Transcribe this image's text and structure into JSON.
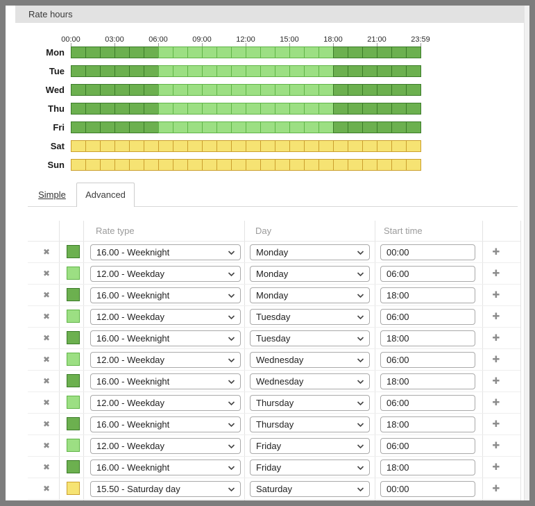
{
  "panel": {
    "title": "Rate hours"
  },
  "timeline": {
    "axis_labels": [
      "00:00",
      "03:00",
      "06:00",
      "09:00",
      "12:00",
      "15:00",
      "18:00",
      "21:00",
      "23:59"
    ],
    "days": [
      {
        "label": "Mon",
        "segments": [
          {
            "rate": "weeknight",
            "hours": 6
          },
          {
            "rate": "weekday",
            "hours": 12
          },
          {
            "rate": "weeknight",
            "hours": 6
          }
        ]
      },
      {
        "label": "Tue",
        "segments": [
          {
            "rate": "weeknight",
            "hours": 6
          },
          {
            "rate": "weekday",
            "hours": 12
          },
          {
            "rate": "weeknight",
            "hours": 6
          }
        ]
      },
      {
        "label": "Wed",
        "segments": [
          {
            "rate": "weeknight",
            "hours": 6
          },
          {
            "rate": "weekday",
            "hours": 12
          },
          {
            "rate": "weeknight",
            "hours": 6
          }
        ]
      },
      {
        "label": "Thu",
        "segments": [
          {
            "rate": "weeknight",
            "hours": 6
          },
          {
            "rate": "weekday",
            "hours": 12
          },
          {
            "rate": "weeknight",
            "hours": 6
          }
        ]
      },
      {
        "label": "Fri",
        "segments": [
          {
            "rate": "weeknight",
            "hours": 6
          },
          {
            "rate": "weekday",
            "hours": 12
          },
          {
            "rate": "weeknight",
            "hours": 6
          }
        ]
      },
      {
        "label": "Sat",
        "segments": [
          {
            "rate": "saturday_day",
            "hours": 24
          }
        ]
      },
      {
        "label": "Sun",
        "segments": [
          {
            "rate": "saturday_day",
            "hours": 24
          }
        ]
      }
    ]
  },
  "tabs": [
    {
      "label": "Simple",
      "active": false
    },
    {
      "label": "Advanced",
      "active": true
    }
  ],
  "table": {
    "headers": {
      "rate_type": "Rate type",
      "day": "Day",
      "start_time": "Start time"
    },
    "rows": [
      {
        "rate": "weeknight",
        "rate_type": "16.00 - Weeknight",
        "day": "Monday",
        "start_time": "00:00"
      },
      {
        "rate": "weekday",
        "rate_type": "12.00 - Weekday",
        "day": "Monday",
        "start_time": "06:00"
      },
      {
        "rate": "weeknight",
        "rate_type": "16.00 - Weeknight",
        "day": "Monday",
        "start_time": "18:00"
      },
      {
        "rate": "weekday",
        "rate_type": "12.00 - Weekday",
        "day": "Tuesday",
        "start_time": "06:00"
      },
      {
        "rate": "weeknight",
        "rate_type": "16.00 - Weeknight",
        "day": "Tuesday",
        "start_time": "18:00"
      },
      {
        "rate": "weekday",
        "rate_type": "12.00 - Weekday",
        "day": "Wednesday",
        "start_time": "06:00"
      },
      {
        "rate": "weeknight",
        "rate_type": "16.00 - Weeknight",
        "day": "Wednesday",
        "start_time": "18:00"
      },
      {
        "rate": "weekday",
        "rate_type": "12.00 - Weekday",
        "day": "Thursday",
        "start_time": "06:00"
      },
      {
        "rate": "weeknight",
        "rate_type": "16.00 - Weeknight",
        "day": "Thursday",
        "start_time": "18:00"
      },
      {
        "rate": "weekday",
        "rate_type": "12.00 - Weekday",
        "day": "Friday",
        "start_time": "06:00"
      },
      {
        "rate": "weeknight",
        "rate_type": "16.00 - Weeknight",
        "day": "Friday",
        "start_time": "18:00"
      },
      {
        "rate": "saturday_day",
        "rate_type": "15.50 - Saturday day",
        "day": "Saturday",
        "start_time": "00:00"
      }
    ]
  },
  "rate_colors": {
    "weeknight": {
      "fill": "#6cb04f",
      "border": "#3b7b28"
    },
    "weekday": {
      "fill": "#9cdf83",
      "border": "#60b447"
    },
    "saturday_day": {
      "fill": "#f6e373",
      "border": "#cb9f2e"
    }
  },
  "icons": {
    "delete": "✖",
    "add": "✚"
  }
}
